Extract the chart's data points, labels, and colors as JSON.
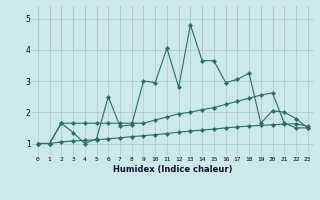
{
  "xlabel": "Humidex (Indice chaleur)",
  "background_color": "#cce8e8",
  "grid_color_major": "#aacccc",
  "grid_color_top": "#cc9999",
  "line_color": "#2a6e65",
  "xlim": [
    -0.5,
    23.5
  ],
  "ylim": [
    0.6,
    5.4
  ],
  "xticks": [
    0,
    1,
    2,
    3,
    4,
    5,
    6,
    7,
    8,
    9,
    10,
    11,
    12,
    13,
    14,
    15,
    16,
    17,
    18,
    19,
    20,
    21,
    22,
    23
  ],
  "yticks": [
    1,
    2,
    3,
    4,
    5
  ],
  "series_bottom_x": [
    0,
    1,
    2,
    3,
    4,
    5,
    6,
    7,
    8,
    9,
    10,
    11,
    12,
    13,
    14,
    15,
    16,
    17,
    18,
    19,
    20,
    21,
    22,
    23
  ],
  "series_bottom_y": [
    1.0,
    1.0,
    1.05,
    1.08,
    1.1,
    1.12,
    1.15,
    1.18,
    1.22,
    1.25,
    1.28,
    1.32,
    1.36,
    1.4,
    1.43,
    1.46,
    1.5,
    1.53,
    1.56,
    1.58,
    1.6,
    1.62,
    1.63,
    1.55
  ],
  "series_mid_x": [
    0,
    1,
    2,
    3,
    4,
    5,
    6,
    7,
    8,
    9,
    10,
    11,
    12,
    13,
    14,
    15,
    16,
    17,
    18,
    19,
    20,
    21,
    22,
    23
  ],
  "series_mid_y": [
    1.0,
    1.0,
    1.65,
    1.65,
    1.65,
    1.65,
    1.65,
    1.65,
    1.65,
    1.65,
    1.75,
    1.85,
    1.95,
    2.0,
    2.08,
    2.15,
    2.25,
    2.35,
    2.45,
    2.55,
    2.62,
    1.65,
    1.5,
    1.5
  ],
  "series_top_x": [
    0,
    1,
    2,
    3,
    4,
    5,
    6,
    7,
    8,
    9,
    10,
    11,
    12,
    13,
    14,
    15,
    16,
    17,
    18,
    19,
    20,
    21,
    22,
    23
  ],
  "series_top_y": [
    1.0,
    1.0,
    1.65,
    1.35,
    1.0,
    1.15,
    2.5,
    1.55,
    1.6,
    3.0,
    2.95,
    4.05,
    2.8,
    4.8,
    3.65,
    3.65,
    2.95,
    3.05,
    3.25,
    1.65,
    2.05,
    2.0,
    1.8,
    1.5
  ]
}
